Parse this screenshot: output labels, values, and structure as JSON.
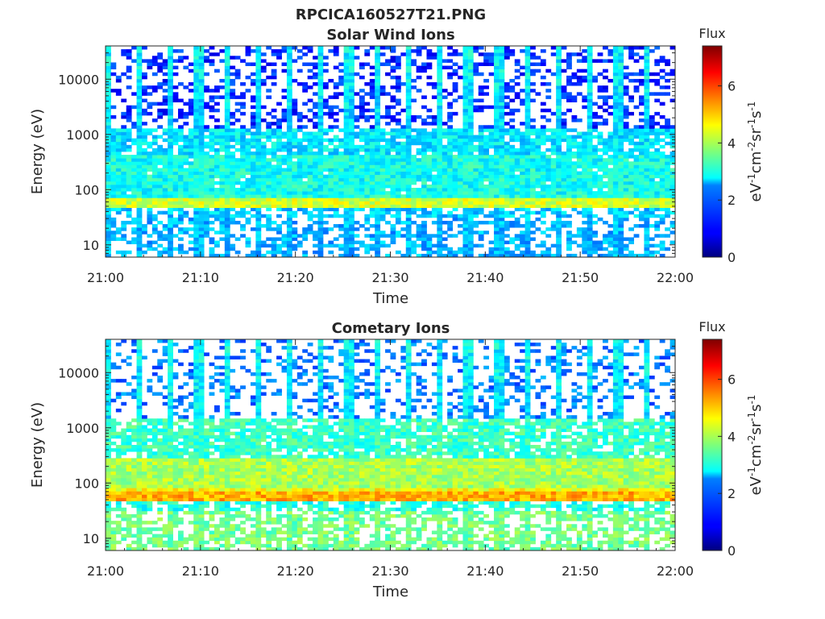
{
  "chart_data": [
    {
      "type": "heatmap",
      "title": "RPCICA160527T21.PNG",
      "subtitle": "Solar Wind Ions",
      "xlabel": "Time",
      "ylabel": "Energy (eV)",
      "x_ticks": [
        "21:00",
        "21:10",
        "21:20",
        "21:30",
        "21:40",
        "21:50",
        "22:00"
      ],
      "y_ticks": [
        "10",
        "100",
        "1000",
        "10000"
      ],
      "y_scale": "log",
      "ylim": [
        6,
        40000
      ],
      "colorbar_title": "Flux",
      "colorbar_ticks": [
        "0",
        "2",
        "4",
        "6"
      ],
      "colorbar_range": [
        0,
        7.4
      ],
      "colorbar_label_parts": [
        "eV",
        "-1",
        "cm",
        "-2",
        "sr",
        "-1",
        "s",
        "-1"
      ],
      "colormap": "jet",
      "sweep_count": 19,
      "bands": [
        {
          "emin": 6,
          "emax": 30,
          "base": 2.2,
          "density": 0.45
        },
        {
          "emin": 30,
          "emax": 45,
          "base": 2.4,
          "density": 0.55
        },
        {
          "emin": 45,
          "emax": 70,
          "base": 4.3,
          "density": 1.0
        },
        {
          "emin": 70,
          "emax": 80,
          "base": 3.0,
          "density": 1.0
        },
        {
          "emin": 80,
          "emax": 400,
          "base": 2.9,
          "density": 0.95
        },
        {
          "emin": 400,
          "emax": 1200,
          "base": 2.6,
          "density": 0.8
        },
        {
          "emin": 1200,
          "emax": 40000,
          "base": 1.2,
          "density": 0.35
        }
      ]
    },
    {
      "type": "heatmap",
      "title": "Cometary Ions",
      "xlabel": "Time",
      "ylabel": "Energy (eV)",
      "x_ticks": [
        "21:00",
        "21:10",
        "21:20",
        "21:30",
        "21:40",
        "21:50",
        "22:00"
      ],
      "y_ticks": [
        "10",
        "100",
        "1000",
        "10000"
      ],
      "y_scale": "log",
      "ylim": [
        6,
        40000
      ],
      "colorbar_title": "Flux",
      "colorbar_ticks": [
        "0",
        "2",
        "4",
        "6"
      ],
      "colorbar_range": [
        0,
        7.4
      ],
      "colorbar_label_parts": [
        "eV",
        "-1",
        "cm",
        "-2",
        "sr",
        "-1",
        "s",
        "-1"
      ],
      "colormap": "jet",
      "sweep_count": 19,
      "bands": [
        {
          "emin": 6,
          "emax": 30,
          "base": 3.6,
          "density": 0.55
        },
        {
          "emin": 30,
          "emax": 45,
          "base": 3.0,
          "density": 0.6
        },
        {
          "emin": 45,
          "emax": 70,
          "base": 5.2,
          "density": 1.0
        },
        {
          "emin": 70,
          "emax": 80,
          "base": 4.6,
          "density": 1.0
        },
        {
          "emin": 80,
          "emax": 300,
          "base": 4.0,
          "density": 1.0
        },
        {
          "emin": 300,
          "emax": 1500,
          "base": 3.2,
          "density": 0.75
        },
        {
          "emin": 1500,
          "emax": 40000,
          "base": 1.8,
          "density": 0.25
        }
      ]
    }
  ]
}
